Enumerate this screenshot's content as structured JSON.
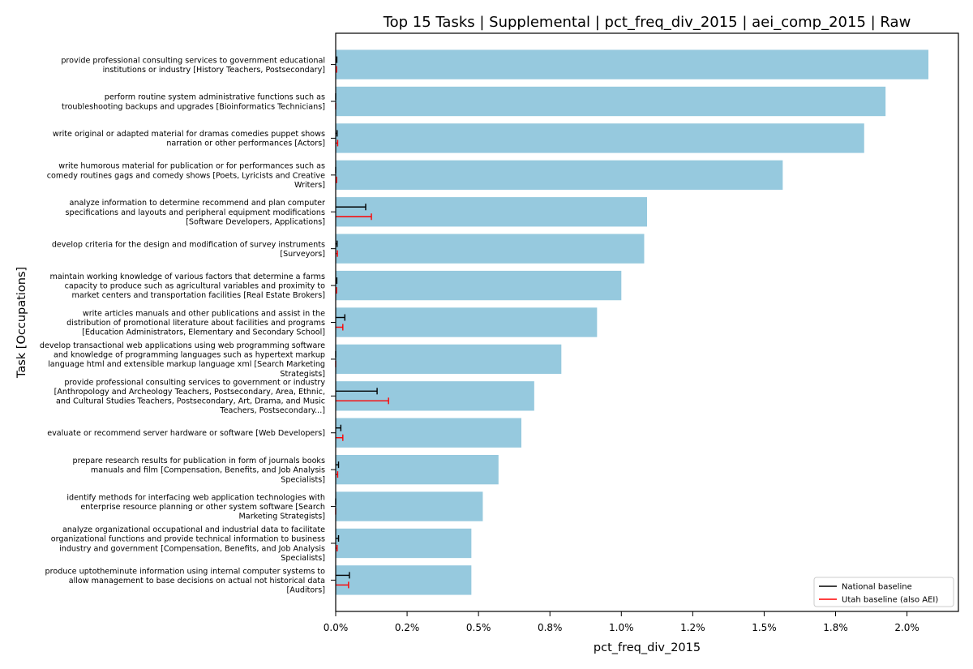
{
  "chart_data": {
    "type": "bar",
    "orientation": "horizontal",
    "title": "Top 15 Tasks | Supplemental | pct_freq_div_2015 | aei_comp_2015 | Raw",
    "xlabel": "pct_freq_div_2015",
    "ylabel": "Task [Occupations]",
    "xlim": [
      0,
      2.18
    ],
    "xticks": [
      "0.0%",
      "0.2%",
      "0.5%",
      "0.8%",
      "1.0%",
      "1.2%",
      "1.5%",
      "1.8%",
      "2.0%"
    ],
    "xtick_values": [
      0,
      0.25,
      0.5,
      0.75,
      1.0,
      1.25,
      1.5,
      1.75,
      2.0
    ],
    "bar_color": "#96c9de",
    "categories": [
      [
        "provide professional consulting services to government educational",
        "institutions or industry  [History Teachers, Postsecondary]"
      ],
      [
        "perform routine system administrative functions such as",
        "troubleshooting backups and upgrades  [Bioinformatics Technicians]"
      ],
      [
        "write original or adapted material for dramas comedies puppet shows",
        "narration or other performances  [Actors]"
      ],
      [
        "write humorous material for publication or for performances such as",
        "comedy routines gags and comedy shows  [Poets, Lyricists and Creative",
        "Writers]"
      ],
      [
        "analyze information to determine recommend and plan computer",
        "specifications and layouts and peripheral equipment modifications",
        "[Software Developers, Applications]"
      ],
      [
        "develop criteria for the design and modification of survey instruments",
        "[Surveyors]"
      ],
      [
        "maintain working knowledge of various factors that determine a farms",
        "capacity to produce such as agricultural variables and proximity to",
        "market centers and transportation facilities  [Real Estate Brokers]"
      ],
      [
        "write articles manuals and other publications and assist in the",
        "distribution of promotional literature about facilities and programs",
        "[Education Administrators, Elementary and Secondary School]"
      ],
      [
        "develop transactional web applications using web programming software",
        "and knowledge of programming languages such as hypertext markup",
        "language html and extensible markup language xml  [Search Marketing",
        "Strategists]"
      ],
      [
        "provide professional consulting services to government or industry",
        "[Anthropology and Archeology Teachers, Postsecondary, Area, Ethnic,",
        "and Cultural Studies Teachers, Postsecondary, Art, Drama, and Music",
        "Teachers, Postsecondary...]"
      ],
      [
        "evaluate or recommend server hardware or software  [Web Developers]"
      ],
      [
        "prepare research results for publication in form of journals books",
        "manuals and film  [Compensation, Benefits, and Job Analysis",
        "Specialists]"
      ],
      [
        "identify methods for interfacing web application technologies with",
        "enterprise resource planning or other system software  [Search",
        "Marketing Strategists]"
      ],
      [
        "analyze organizational occupational and industrial data to facilitate",
        "organizational functions and provide technical information to business",
        "industry and government  [Compensation, Benefits, and Job Analysis",
        "Specialists]"
      ],
      [
        "produce uptotheminute information using internal computer systems to",
        "allow management to base decisions on actual not historical data",
        "[Auditors]"
      ]
    ],
    "values": [
      2.075,
      1.925,
      1.85,
      1.565,
      1.09,
      1.08,
      1.0,
      0.915,
      0.79,
      0.695,
      0.65,
      0.57,
      0.515,
      0.475,
      0.475
    ],
    "series": [
      {
        "name": "National baseline",
        "color": "#000000",
        "values": [
          0.004,
          0.0,
          0.005,
          0.0,
          0.105,
          0.005,
          0.004,
          0.032,
          0.0,
          0.145,
          0.018,
          0.01,
          0.0,
          0.01,
          0.048
        ]
      },
      {
        "name": "Utah baseline (also AEI)",
        "color": "#ff0000",
        "values": [
          0.003,
          0.0,
          0.007,
          0.003,
          0.125,
          0.006,
          0.003,
          0.025,
          0.0,
          0.185,
          0.025,
          0.007,
          0.0,
          0.005,
          0.045
        ]
      }
    ],
    "legend": "lower-right",
    "grid": false
  }
}
